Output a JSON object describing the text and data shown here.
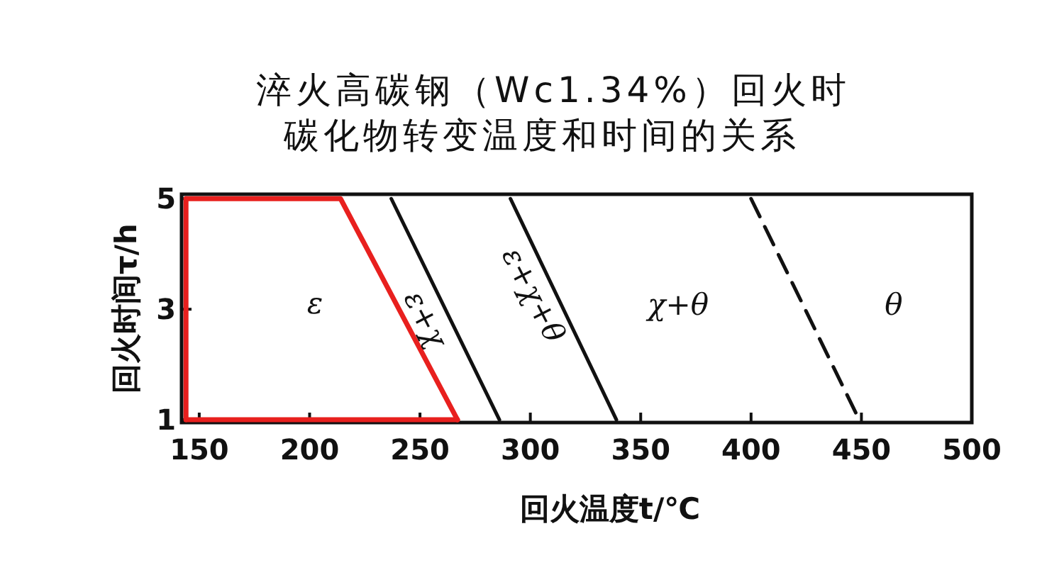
{
  "chart_data": {
    "type": "line",
    "title": "淬火高碳钢（Wc1.34%）回火时",
    "subtitle": "碳化物转变温度和时间的关系",
    "xlabel": "回火温度t/℃",
    "ylabel": "回火时间τ/h",
    "xlim": [
      142,
      500
    ],
    "ylim": [
      0.95,
      5.08
    ],
    "xticks": [
      150,
      200,
      250,
      300,
      350,
      400,
      450,
      500
    ],
    "yticks": [
      1,
      3,
      5
    ],
    "grid": false,
    "marker": "none",
    "series": [
      {
        "color": "#e8201e",
        "x": [
          144,
          214,
          267
        ],
        "values": [
          5,
          5,
          1
        ],
        "line_style": "solid"
      },
      {
        "color": "#e8201e",
        "x": [
          144,
          267
        ],
        "values": [
          1,
          1
        ],
        "line_style": "solid"
      },
      {
        "color": "#e8201e",
        "x": [
          144,
          144
        ],
        "values": [
          1,
          5
        ],
        "line_style": "solid"
      },
      {
        "color": "#111111",
        "x": [
          237,
          286
        ],
        "values": [
          5,
          1
        ],
        "line_style": "solid"
      },
      {
        "color": "#111111",
        "x": [
          291,
          339
        ],
        "values": [
          5,
          1
        ],
        "line_style": "solid"
      },
      {
        "color": "#111111",
        "x": [
          400,
          449
        ],
        "values": [
          5,
          1
        ],
        "line_style": "dashed"
      }
    ],
    "annotations": [
      "ε",
      "ε+χ",
      "ε+χ+θ",
      "χ+θ",
      "θ"
    ]
  }
}
